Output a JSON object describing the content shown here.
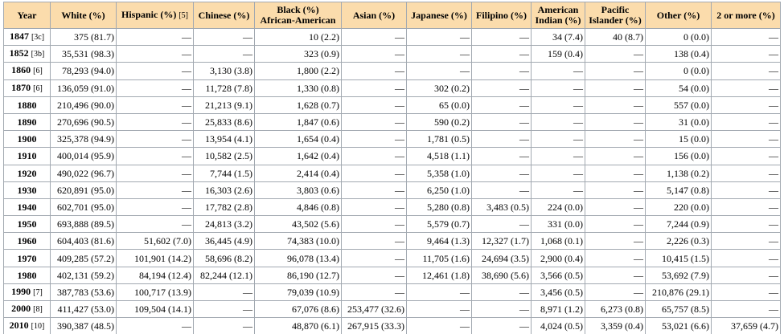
{
  "table": {
    "headers": [
      {
        "lines": [
          "Year"
        ]
      },
      {
        "lines": [
          "White (%)"
        ]
      },
      {
        "lines": [
          "Hispanic (%)"
        ],
        "note": "[5]"
      },
      {
        "lines": [
          "Chinese (%)"
        ]
      },
      {
        "lines": [
          "Black (%)",
          "African-American"
        ]
      },
      {
        "lines": [
          "Asian (%)"
        ]
      },
      {
        "lines": [
          "Japanese (%)"
        ]
      },
      {
        "lines": [
          "Filipino (%)"
        ]
      },
      {
        "lines": [
          "American",
          "Indian (%)"
        ]
      },
      {
        "lines": [
          "Pacific",
          "Islander (%)"
        ]
      },
      {
        "lines": [
          "Other (%)"
        ]
      },
      {
        "lines": [
          "2 or more (%)"
        ]
      }
    ],
    "rows": [
      {
        "year": "1847",
        "note": "[3c]",
        "cells": [
          "375 (81.7)",
          "—",
          "—",
          "10 (2.2)",
          "—",
          "—",
          "—",
          "34 (7.4)",
          "40 (8.7)",
          "0 (0.0)",
          "—"
        ]
      },
      {
        "year": "1852",
        "note": "[3b]",
        "cells": [
          "35,531 (98.3)",
          "—",
          "—",
          "323 (0.9)",
          "—",
          "—",
          "—",
          "159 (0.4)",
          "—",
          "138 (0.4)",
          "—"
        ]
      },
      {
        "year": "1860",
        "note": "[6]",
        "cells": [
          "78,293 (94.0)",
          "—",
          "3,130 (3.8)",
          "1,800 (2.2)",
          "—",
          "—",
          "—",
          "—",
          "—",
          "0 (0.0)",
          "—"
        ]
      },
      {
        "year": "1870",
        "note": "[6]",
        "cells": [
          "136,059 (91.0)",
          "—",
          "11,728 (7.8)",
          "1,330 (0.8)",
          "—",
          "302 (0.2)",
          "—",
          "—",
          "—",
          "54 (0.0)",
          "—"
        ]
      },
      {
        "year": "1880",
        "cells": [
          "210,496 (90.0)",
          "—",
          "21,213 (9.1)",
          "1,628 (0.7)",
          "—",
          "65 (0.0)",
          "—",
          "—",
          "—",
          "557 (0.0)",
          "—"
        ]
      },
      {
        "year": "1890",
        "cells": [
          "270,696 (90.5)",
          "—",
          "25,833 (8.6)",
          "1,847 (0.6)",
          "—",
          "590 (0.2)",
          "—",
          "—",
          "—",
          "31 (0.0)",
          "—"
        ]
      },
      {
        "year": "1900",
        "cells": [
          "325,378 (94.9)",
          "—",
          "13,954 (4.1)",
          "1,654 (0.4)",
          "—",
          "1,781 (0.5)",
          "—",
          "—",
          "—",
          "15 (0.0)",
          "—"
        ]
      },
      {
        "year": "1910",
        "cells": [
          "400,014 (95.9)",
          "—",
          "10,582 (2.5)",
          "1,642 (0.4)",
          "—",
          "4,518 (1.1)",
          "—",
          "—",
          "—",
          "156 (0.0)",
          "—"
        ]
      },
      {
        "year": "1920",
        "cells": [
          "490,022 (96.7)",
          "—",
          "7,744 (1.5)",
          "2,414 (0.4)",
          "—",
          "5,358 (1.0)",
          "—",
          "—",
          "—",
          "1,138 (0.2)",
          "—"
        ]
      },
      {
        "year": "1930",
        "cells": [
          "620,891 (95.0)",
          "—",
          "16,303 (2.6)",
          "3,803 (0.6)",
          "—",
          "6,250 (1.0)",
          "—",
          "—",
          "—",
          "5,147 (0.8)",
          "—"
        ]
      },
      {
        "year": "1940",
        "cells": [
          "602,701 (95.0)",
          "—",
          "17,782 (2.8)",
          "4,846 (0.8)",
          "—",
          "5,280 (0.8)",
          "3,483 (0.5)",
          "224 (0.0)",
          "—",
          "220 (0.0)",
          "—"
        ]
      },
      {
        "year": "1950",
        "cells": [
          "693,888 (89.5)",
          "—",
          "24,813 (3.2)",
          "43,502 (5.6)",
          "—",
          "5,579 (0.7)",
          "—",
          "331 (0.0)",
          "—",
          "7,244 (0.9)",
          "—"
        ]
      },
      {
        "year": "1960",
        "cells": [
          "604,403 (81.6)",
          "51,602 (7.0)",
          "36,445 (4.9)",
          "74,383 (10.0)",
          "—",
          "9,464 (1.3)",
          "12,327 (1.7)",
          "1,068 (0.1)",
          "—",
          "2,226 (0.3)",
          "—"
        ]
      },
      {
        "year": "1970",
        "cells": [
          "409,285 (57.2)",
          "101,901 (14.2)",
          "58,696 (8.2)",
          "96,078 (13.4)",
          "—",
          "11,705 (1.6)",
          "24,694 (3.5)",
          "2,900 (0.4)",
          "—",
          "10,415 (1.5)",
          "—"
        ]
      },
      {
        "year": "1980",
        "cells": [
          "402,131 (59.2)",
          "84,194 (12.4)",
          "82,244 (12.1)",
          "86,190 (12.7)",
          "—",
          "12,461 (1.8)",
          "38,690 (5.6)",
          "3,566 (0.5)",
          "—",
          "53,692 (7.9)",
          "—"
        ]
      },
      {
        "year": "1990",
        "note": "[7]",
        "cells": [
          "387,783 (53.6)",
          "100,717 (13.9)",
          "—",
          "79,039 (10.9)",
          "—",
          "—",
          "—",
          "3,456 (0.5)",
          "—",
          "210,876 (29.1)",
          "—"
        ]
      },
      {
        "year": "2000",
        "note": "[8]",
        "cells": [
          "411,427 (53.0)",
          "109,504 (14.1)",
          "—",
          "67,076 (8.6)",
          "253,477 (32.6)",
          "—",
          "—",
          "8,971 (1.2)",
          "6,273 (0.8)",
          "65,757 (8.5)",
          "—"
        ]
      },
      {
        "year": "2010",
        "note": "[10]",
        "cells": [
          "390,387 (48.5)",
          "—",
          "—",
          "48,870 (6.1)",
          "267,915 (33.3)",
          "—",
          "—",
          "4,024 (0.5)",
          "3,359 (0.4)",
          "53,021 (6.6)",
          "37,659 (4.7)"
        ]
      }
    ]
  }
}
